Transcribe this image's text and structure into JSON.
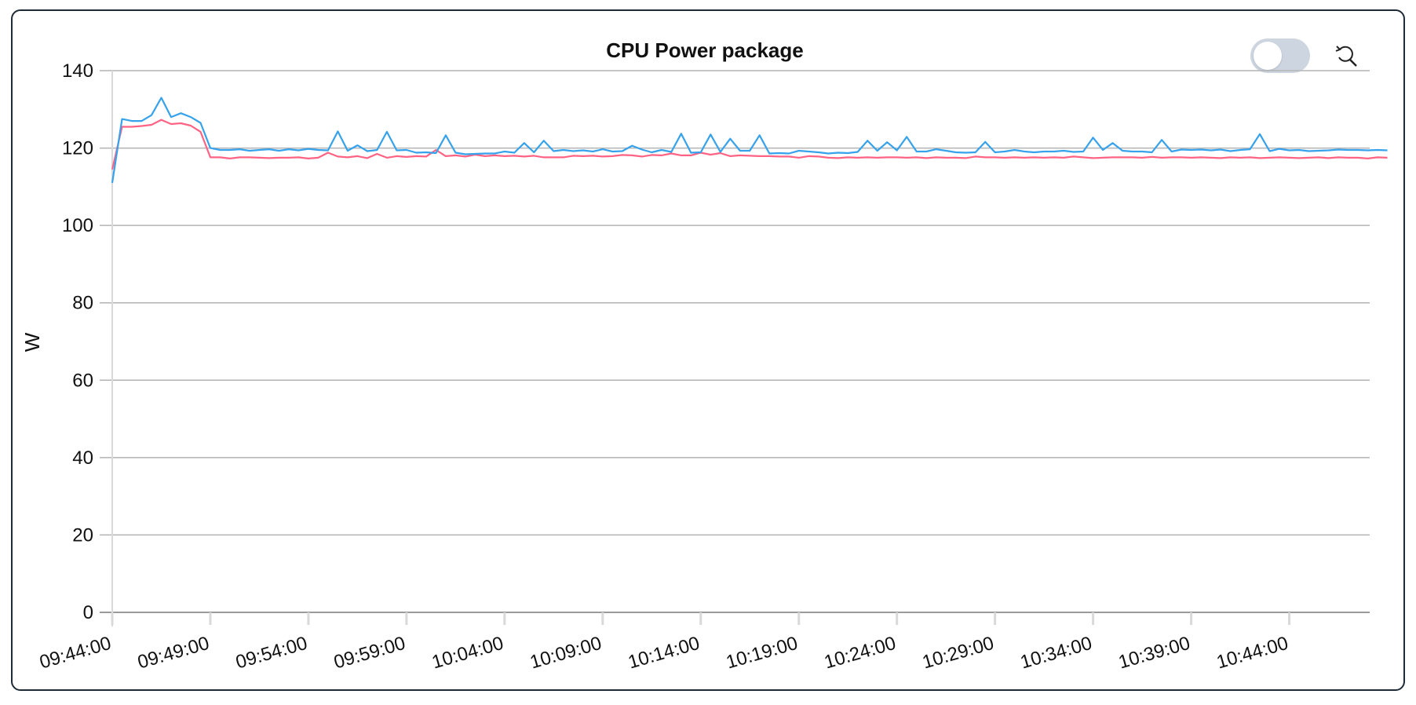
{
  "chart_data": {
    "type": "line",
    "title": "CPU Power package",
    "xlabel": "",
    "ylabel": "W",
    "ylim": [
      0,
      140
    ],
    "y_ticks": [
      0,
      20,
      40,
      60,
      80,
      100,
      120,
      140
    ],
    "x_tick_labels": [
      "09:44:00",
      "09:49:00",
      "09:54:00",
      "09:59:00",
      "10:04:00",
      "10:09:00",
      "10:14:00",
      "10:19:00",
      "10:24:00",
      "10:29:00",
      "10:34:00",
      "10:39:00",
      "10:44:00"
    ],
    "x_range_minutes": [
      0,
      64.1
    ],
    "sample_interval_seconds": 30,
    "grid": true,
    "legend": "none",
    "series": [
      {
        "color": "#36a2eb",
        "values": [
          111,
          127.5,
          127,
          127,
          128.5,
          133,
          128,
          129,
          128,
          126.5,
          120,
          119.5,
          119.5,
          119.7,
          119.3,
          119.5,
          119.7,
          119.3,
          119.7,
          119.4,
          119.8,
          119.5,
          119.4,
          124.3,
          119.3,
          120.7,
          119.2,
          119.5,
          124.2,
          119.4,
          119.5,
          118.8,
          118.9,
          118.7,
          123.3,
          118.8,
          118.4,
          118.5,
          118.6,
          118.6,
          119.1,
          118.8,
          121.3,
          118.9,
          121.9,
          119.2,
          119.5,
          119.2,
          119.4,
          119.1,
          119.7,
          119.1,
          119.2,
          120.6,
          119.6,
          118.9,
          119.5,
          119,
          123.7,
          118.8,
          118.9,
          123.5,
          119,
          122.4,
          119.3,
          119.3,
          123.3,
          118.6,
          118.7,
          118.6,
          119.3,
          119.1,
          118.9,
          118.6,
          118.8,
          118.7,
          119,
          121.9,
          119.3,
          121.5,
          119.4,
          122.9,
          119.1,
          119.1,
          119.7,
          119.3,
          118.9,
          118.8,
          118.9,
          121.6,
          118.9,
          119.1,
          119.5,
          119.1,
          118.9,
          119.1,
          119.1,
          119.3,
          119,
          119.1,
          122.7,
          119.5,
          121.3,
          119.3,
          119.1,
          119.1,
          118.9,
          122.1,
          119.1,
          119.6,
          119.5,
          119.6,
          119.4,
          119.6,
          119.2,
          119.5,
          119.7,
          123.6,
          119.2,
          119.8,
          119.4,
          119.5,
          119.2,
          119.3,
          119.4,
          119.6,
          119.5,
          119.5,
          119.4,
          119.5,
          119.4
        ]
      },
      {
        "color": "#ff6384",
        "values": [
          114.5,
          125.5,
          125.5,
          125.7,
          126,
          127.3,
          126.2,
          126.4,
          125.8,
          124.2,
          117.6,
          117.6,
          117.3,
          117.6,
          117.6,
          117.5,
          117.4,
          117.5,
          117.5,
          117.6,
          117.3,
          117.5,
          118.8,
          117.8,
          117.6,
          117.9,
          117.4,
          118.5,
          117.5,
          117.9,
          117.7,
          117.9,
          117.8,
          119.5,
          117.9,
          118.1,
          117.8,
          118.3,
          117.9,
          118.1,
          117.9,
          118,
          117.8,
          118,
          117.6,
          117.6,
          117.6,
          118,
          117.9,
          118,
          117.8,
          117.9,
          118.2,
          118.1,
          117.8,
          118.2,
          118.1,
          118.6,
          118.1,
          118.1,
          118.8,
          118.3,
          118.7,
          117.9,
          118.1,
          118,
          117.9,
          117.9,
          117.8,
          117.8,
          117.5,
          117.9,
          117.8,
          117.5,
          117.4,
          117.6,
          117.5,
          117.6,
          117.5,
          117.6,
          117.6,
          117.5,
          117.6,
          117.4,
          117.6,
          117.5,
          117.5,
          117.4,
          117.8,
          117.6,
          117.6,
          117.5,
          117.6,
          117.5,
          117.6,
          117.5,
          117.6,
          117.5,
          117.8,
          117.6,
          117.4,
          117.5,
          117.6,
          117.6,
          117.6,
          117.5,
          117.7,
          117.5,
          117.6,
          117.6,
          117.5,
          117.6,
          117.5,
          117.4,
          117.6,
          117.5,
          117.6,
          117.4,
          117.5,
          117.6,
          117.5,
          117.4,
          117.5,
          117.6,
          117.4,
          117.6,
          117.5,
          117.5,
          117.3,
          117.6,
          117.5
        ]
      }
    ]
  },
  "controls": {
    "toggle_state": "off",
    "toggle_icon": "toggle-switch",
    "reset_zoom_icon": "zoom-reset-icon"
  },
  "colors": {
    "border": "#1f2a37",
    "grid": "#b3b3b3",
    "toggle_track": "#ccd5e0"
  }
}
